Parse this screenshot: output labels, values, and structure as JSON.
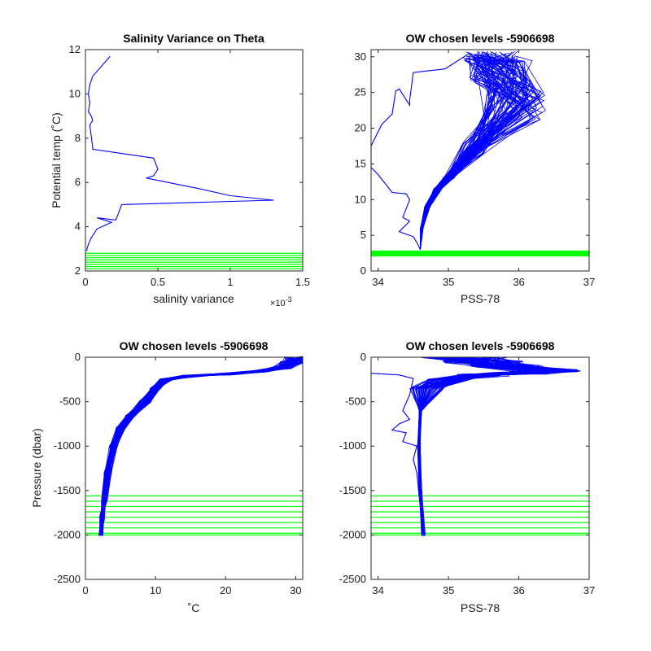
{
  "chart_data": [
    {
      "type": "line",
      "title": "Salinity Variance on Theta",
      "xlabel": "salinity variance",
      "ylabel": "Potential temp (˚C)",
      "x_exponent_label": "×10",
      "x_exponent_power": "-3",
      "xlim": [
        0,
        1.5
      ],
      "ylim": [
        2,
        12
      ],
      "xticks": [
        "0",
        "0.5",
        "1",
        "1.5"
      ],
      "yticks": [
        "2",
        "4",
        "6",
        "8",
        "10",
        "12"
      ],
      "xtick_values": [
        0,
        0.5,
        1,
        1.5
      ],
      "ytick_values": [
        2,
        4,
        6,
        8,
        10,
        12
      ],
      "grid": false,
      "series": [
        {
          "color": "#0000ff",
          "x": [
            0.17,
            0.05,
            0.03,
            0.02,
            0.03,
            0.02,
            0.04,
            0.05,
            0.03,
            0.05,
            0.05,
            0.47,
            0.5,
            0.47,
            0.42,
            0.8,
            1.0,
            1.3,
            0.25,
            0.21,
            0.08,
            0.18,
            0.08,
            0.04,
            0.02,
            0.01,
            0.01
          ],
          "y": [
            11.7,
            10.8,
            10.4,
            10.0,
            9.6,
            9.2,
            9.0,
            8.8,
            8.6,
            7.6,
            7.5,
            7.1,
            6.6,
            6.3,
            6.2,
            5.7,
            5.4,
            5.2,
            5.0,
            4.3,
            4.4,
            4.2,
            3.9,
            3.5,
            3.2,
            3.0,
            2.9
          ]
        }
      ],
      "reference_lines_color": "#00ff00",
      "reference_levels": [
        2.1,
        2.2,
        2.3,
        2.4,
        2.5,
        2.6,
        2.7,
        2.8
      ]
    },
    {
      "type": "line",
      "title": "OW chosen levels -5906698",
      "xlabel": "PSS-78",
      "ylabel": "",
      "xlim": [
        33.9,
        37
      ],
      "ylim": [
        0,
        31
      ],
      "xticks": [
        "34",
        "35",
        "36",
        "37"
      ],
      "yticks": [
        "0",
        "5",
        "10",
        "15",
        "20",
        "25",
        "30"
      ],
      "xtick_values": [
        34,
        35,
        36,
        37
      ],
      "ytick_values": [
        0,
        5,
        10,
        15,
        20,
        25,
        30
      ],
      "grid": false,
      "series": [
        {
          "color": "#0000ff",
          "x": [
            35.3,
            34.95,
            34.5,
            34.45,
            34.45,
            34.3,
            34.25,
            34.2,
            34.05,
            33.9,
            33.9,
            34.0,
            34.2,
            34.4,
            34.45,
            34.35,
            34.45,
            34.3,
            34.5,
            34.55,
            34.6
          ],
          "y": [
            30.5,
            28.3,
            27.8,
            24.0,
            23.2,
            25.5,
            25.2,
            22.0,
            20.5,
            17.5,
            14.5,
            13.5,
            11.0,
            10.8,
            10.0,
            7.5,
            7.0,
            5.5,
            4.8,
            4.0,
            3.0
          ]
        }
      ],
      "ensemble": {
        "color": "#0000ff",
        "deep_x": [
          34.6,
          34.62,
          34.7,
          34.85,
          35.0
        ],
        "deep_y": [
          3.0,
          6.0,
          9.0,
          11.5,
          13.0
        ],
        "upper_x_range": [
          35.2,
          36.4
        ],
        "upper_y_range": [
          13.0,
          30.8
        ],
        "max_point": [
          36.4,
          25.0
        ]
      },
      "reference_lines_color": "#00ff00",
      "reference_levels": [
        2.1,
        2.2,
        2.3,
        2.4,
        2.5,
        2.6,
        2.7,
        2.8
      ]
    },
    {
      "type": "line",
      "title": "OW chosen levels -5906698",
      "xlabel": "˚C",
      "ylabel": "Pressure (dbar)",
      "xlim": [
        0,
        31
      ],
      "ylim": [
        -2500,
        0
      ],
      "xticks": [
        "0",
        "10",
        "20",
        "30"
      ],
      "yticks": [
        "-2500",
        "-2000",
        "-1500",
        "-1000",
        "-500",
        "0"
      ],
      "xtick_values": [
        0,
        10,
        20,
        30
      ],
      "ytick_values": [
        -2500,
        -2000,
        -1500,
        -1000,
        -500,
        0
      ],
      "grid": false,
      "series": [
        {
          "color": "#0000ff",
          "x": [
            2.2,
            2.4,
            2.7,
            3.2,
            4.0,
            5.0,
            6.5,
            8.5,
            10.0,
            11.5,
            15.0,
            20.0,
            25.0,
            28.0,
            29.5,
            30.5
          ],
          "y": [
            -2000,
            -1800,
            -1600,
            -1300,
            -1000,
            -800,
            -650,
            -500,
            -350,
            -250,
            -210,
            -190,
            -160,
            -120,
            -60,
            0
          ]
        }
      ],
      "reference_lines_color": "#00ff00",
      "reference_levels": [
        -1560,
        -1620,
        -1680,
        -1740,
        -1800,
        -1860,
        -1920,
        -1980,
        -2000
      ]
    },
    {
      "type": "line",
      "title": "OW chosen levels -5906698",
      "xlabel": "PSS-78",
      "ylabel": "",
      "xlim": [
        33.9,
        37
      ],
      "ylim": [
        -2500,
        0
      ],
      "xticks": [
        "34",
        "35",
        "36",
        "37"
      ],
      "yticks": [
        "-2500",
        "-2000",
        "-1500",
        "-1000",
        "-500",
        "0"
      ],
      "xtick_values": [
        34,
        35,
        36,
        37
      ],
      "ytick_values": [
        -2500,
        -2000,
        -1500,
        -1000,
        -500,
        0
      ],
      "grid": false,
      "series": [
        {
          "color": "#0000ff",
          "x": [
            33.9,
            34.3,
            34.5,
            34.45,
            34.35,
            34.45,
            34.3,
            34.2,
            34.4,
            34.35,
            34.55,
            34.5,
            34.55,
            34.6,
            34.62
          ],
          "y": [
            -180,
            -200,
            -240,
            -420,
            -600,
            -700,
            -750,
            -820,
            -850,
            -950,
            -1000,
            -1150,
            -1300,
            -1700,
            -2000
          ]
        },
        {
          "color": "#0000ff",
          "x": [
            34.65,
            34.6,
            34.58,
            34.6,
            34.7,
            35.0,
            35.5,
            36.0,
            36.4,
            35.8,
            35.5,
            35.2
          ],
          "y": [
            -2000,
            -1500,
            -1000,
            -600,
            -350,
            -250,
            -200,
            -180,
            -150,
            -100,
            -50,
            0
          ]
        }
      ],
      "reference_lines_color": "#00ff00",
      "reference_levels": [
        -1560,
        -1620,
        -1680,
        -1740,
        -1800,
        -1860,
        -1920,
        -1980,
        -2000
      ]
    }
  ]
}
